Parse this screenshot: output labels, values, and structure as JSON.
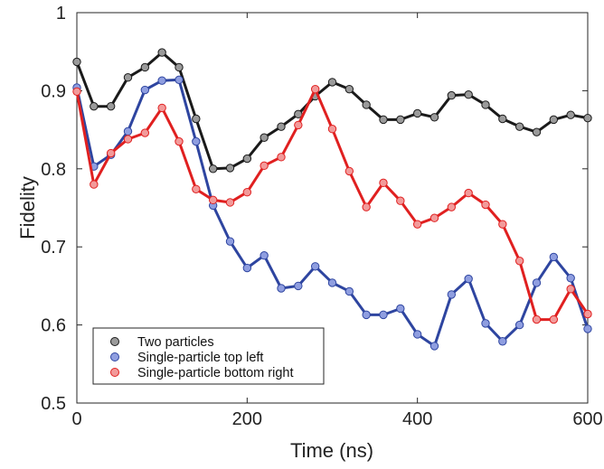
{
  "chart_data": {
    "type": "line",
    "xlabel": "Time (ns)",
    "ylabel": "Fidelity",
    "xlim": [
      0,
      600
    ],
    "ylim": [
      0.5,
      1
    ],
    "x_ticks": [
      "0",
      "200",
      "400",
      "600"
    ],
    "y_ticks": [
      "0.5",
      "0.6",
      "0.7",
      "0.8",
      "0.9",
      "1"
    ],
    "x_tick_values": [
      0,
      200,
      400,
      600
    ],
    "y_tick_values": [
      0.5,
      0.6,
      0.7,
      0.8,
      0.9,
      1.0
    ],
    "grid": false,
    "legend_position": "bottom-left",
    "x": [
      0,
      20,
      40,
      60,
      80,
      100,
      120,
      140,
      160,
      180,
      200,
      220,
      240,
      260,
      280,
      300,
      320,
      340,
      360,
      380,
      400,
      420,
      440,
      460,
      480,
      500,
      520,
      540,
      560,
      580,
      600
    ],
    "series": [
      {
        "name": "Two particles",
        "line_color": "#1a1a1a",
        "marker_color": "#9a9a9a",
        "values": [
          0.937,
          0.88,
          0.88,
          0.917,
          0.93,
          0.949,
          0.93,
          0.864,
          0.8,
          0.801,
          0.813,
          0.84,
          0.854,
          0.87,
          0.893,
          0.911,
          0.902,
          0.882,
          0.863,
          0.863,
          0.871,
          0.866,
          0.894,
          0.895,
          0.882,
          0.864,
          0.854,
          0.847,
          0.863,
          0.869,
          0.865
        ]
      },
      {
        "name": "Single-particle top left",
        "line_color": "#2e45a0",
        "marker_color": "#8f9ee0",
        "values": [
          0.904,
          0.803,
          0.818,
          0.848,
          0.901,
          0.913,
          0.914,
          0.835,
          0.753,
          0.707,
          0.673,
          0.689,
          0.647,
          0.65,
          0.675,
          0.654,
          0.643,
          0.613,
          0.613,
          0.621,
          0.588,
          0.573,
          0.639,
          0.659,
          0.602,
          0.579,
          0.6,
          0.654,
          0.687,
          0.66,
          0.595
        ]
      },
      {
        "name": "Single-particle bottom right",
        "line_color": "#e02020",
        "marker_color": "#f29a9a",
        "values": [
          0.899,
          0.78,
          0.82,
          0.838,
          0.846,
          0.878,
          0.835,
          0.774,
          0.76,
          0.757,
          0.77,
          0.804,
          0.815,
          0.856,
          0.902,
          0.851,
          0.797,
          0.751,
          0.782,
          0.759,
          0.729,
          0.737,
          0.751,
          0.769,
          0.754,
          0.729,
          0.682,
          0.607,
          0.607,
          0.646,
          0.614
        ]
      }
    ]
  }
}
